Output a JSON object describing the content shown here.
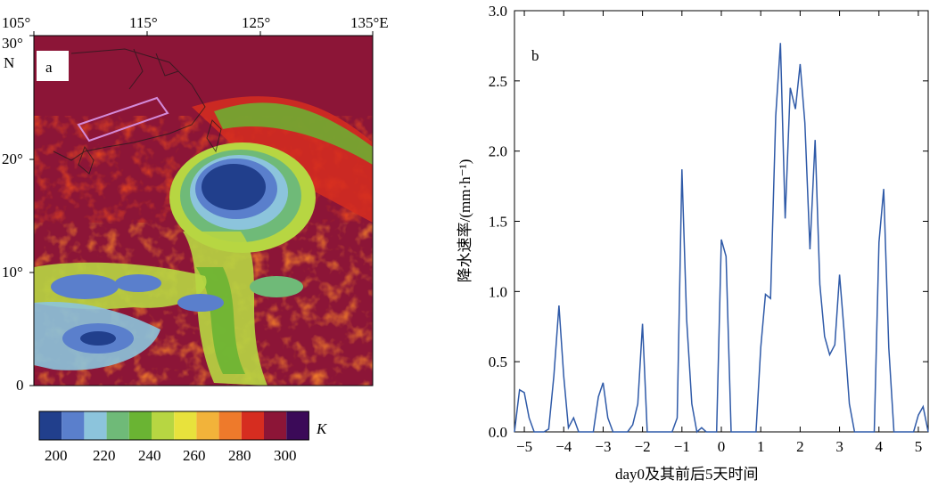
{
  "panel_a": {
    "label": "a",
    "lon_ticks": [
      "105°",
      "115°",
      "125°",
      "135°E"
    ],
    "lat_ticks": [
      "30°",
      "N",
      "20°",
      "10°",
      "0"
    ],
    "colorbar": {
      "ticks": [
        "200",
        "220",
        "240",
        "260",
        "280",
        "300"
      ],
      "unit": "K",
      "colors": [
        "#213f8c",
        "#5a7fcc",
        "#8cc4dc",
        "#6fba78",
        "#6ab433",
        "#b7d642",
        "#e8e23c",
        "#f2b33a",
        "#ee7a2b",
        "#d62d20",
        "#8c1537",
        "#3b0a58"
      ]
    }
  },
  "chart_data": {
    "type": "line",
    "label": "b",
    "xlabel": "day0及其前后5天时间",
    "ylabel": "降水速率/(mm·h⁻¹)",
    "xlim": [
      -5.25,
      5.25
    ],
    "ylim": [
      0,
      3.0
    ],
    "xticks": [
      "−5",
      "−4",
      "−3",
      "−2",
      "−1",
      "0",
      "1",
      "2",
      "3",
      "4",
      "5"
    ],
    "yticks": [
      "0.0",
      "0.5",
      "1.0",
      "1.5",
      "2.0",
      "2.5",
      "3.0"
    ],
    "line_color": "#2f5aa8",
    "series": [
      {
        "x": [
          -5.25,
          -5.12,
          -5.0,
          -4.88,
          -4.75,
          -4.62,
          -4.5,
          -4.38,
          -4.25,
          -4.12,
          -4.0,
          -3.88,
          -3.75,
          -3.62,
          -3.5,
          -3.38,
          -3.25,
          -3.12,
          -3.0,
          -2.88,
          -2.75,
          -2.62,
          -2.5,
          -2.38,
          -2.25,
          -2.12,
          -2.0,
          -1.88,
          -1.75,
          -1.62,
          -1.5,
          -1.38,
          -1.25,
          -1.12,
          -1.0,
          -0.88,
          -0.75,
          -0.62,
          -0.5,
          -0.38,
          -0.25,
          -0.12,
          0.0,
          0.12,
          0.25,
          0.38,
          0.5,
          0.62,
          0.75,
          0.88,
          1.0,
          1.12,
          1.25,
          1.38,
          1.5,
          1.62,
          1.75,
          1.88,
          2.0,
          2.12,
          2.25,
          2.38,
          2.5,
          2.62,
          2.75,
          2.88,
          3.0,
          3.12,
          3.25,
          3.38,
          3.5,
          3.62,
          3.75,
          3.88,
          4.0,
          4.12,
          4.25,
          4.38,
          4.5,
          4.62,
          4.75,
          4.88,
          5.0,
          5.12,
          5.25
        ],
        "y": [
          0.0,
          0.3,
          0.28,
          0.1,
          0.0,
          0.0,
          0.0,
          0.02,
          0.4,
          0.9,
          0.4,
          0.03,
          0.1,
          0.0,
          0.0,
          0.0,
          0.0,
          0.25,
          0.35,
          0.1,
          0.0,
          0.0,
          0.0,
          0.0,
          0.05,
          0.2,
          0.77,
          0.0,
          0.0,
          0.0,
          0.0,
          0.0,
          0.0,
          0.1,
          1.87,
          0.8,
          0.2,
          0.0,
          0.03,
          0.0,
          0.0,
          0.0,
          1.37,
          1.25,
          0.0,
          0.0,
          0.0,
          0.0,
          0.0,
          0.0,
          0.6,
          0.98,
          0.95,
          2.25,
          2.77,
          1.52,
          2.45,
          2.3,
          2.62,
          2.2,
          1.3,
          2.08,
          1.05,
          0.68,
          0.55,
          0.62,
          1.12,
          0.7,
          0.2,
          0.0,
          0.0,
          0.0,
          0.0,
          0.0,
          1.35,
          1.73,
          0.6,
          0.0,
          0.0,
          0.0,
          0.0,
          0.0,
          0.12,
          0.18,
          0.0
        ]
      }
    ]
  }
}
